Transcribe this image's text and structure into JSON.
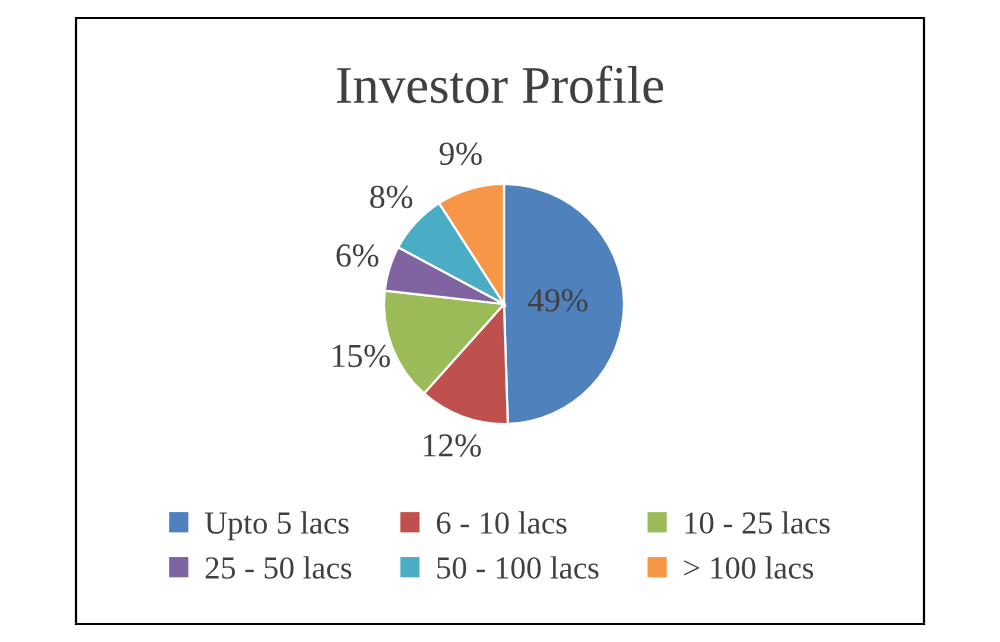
{
  "chart_data": {
    "type": "pie",
    "title": "Investor Profile",
    "categories": [
      "Upto 5 lacs",
      "6 - 10 lacs",
      "10 - 25 lacs",
      "25 - 50 lacs",
      "50 - 100 lacs",
      "> 100 lacs"
    ],
    "values": [
      49,
      12,
      15,
      6,
      8,
      9
    ],
    "colors": [
      "#4f81bd",
      "#c0504d",
      "#9bbb59",
      "#8064a2",
      "#4bacc6",
      "#f79646"
    ],
    "value_labels": [
      "49%",
      "12%",
      "15%",
      "6%",
      "8%",
      "9%"
    ],
    "legend": "bottom"
  }
}
